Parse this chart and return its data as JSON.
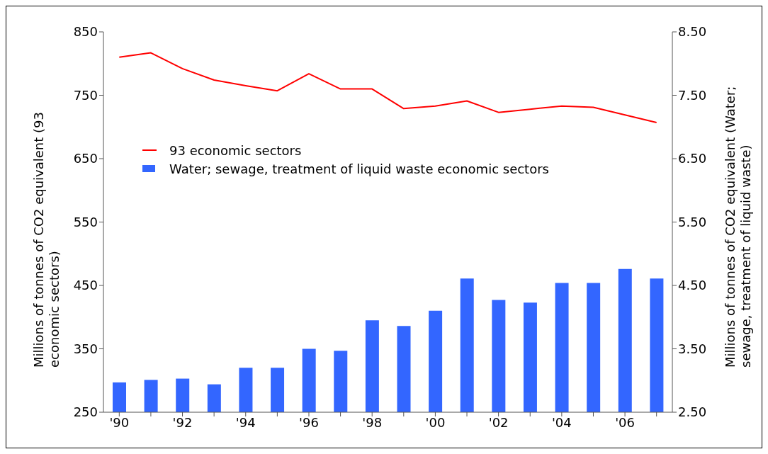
{
  "chart_data": {
    "type": "line",
    "categories": [
      "'90",
      null,
      "'92",
      null,
      "'94",
      null,
      "'96",
      null,
      "'98",
      null,
      "'00",
      null,
      "'02",
      null,
      "'04",
      null,
      "'06",
      null
    ],
    "ylabel": "Millions of tonnes of CO2 equivalent (93 economic sectors)",
    "y2label": "Millions of tonnes of CO2 equivalent (Water; sewage, treatment of liquid waste)",
    "ylim": [
      250,
      850
    ],
    "yticks": [
      250,
      350,
      450,
      550,
      650,
      750,
      850
    ],
    "y2lim": [
      2.5,
      8.5
    ],
    "y2ticks": [
      {
        "value": 2.5,
        "label": "2.50"
      },
      {
        "value": 3.5,
        "label": "3.50"
      },
      {
        "value": 4.5,
        "label": "4.50"
      },
      {
        "value": 5.5,
        "label": "5.50"
      },
      {
        "value": 6.5,
        "label": "6.50"
      },
      {
        "value": 7.5,
        "label": "7.50"
      },
      {
        "value": 8.5,
        "label": "8.50"
      }
    ],
    "legend": "top left",
    "marker": "none",
    "line_style": "solid",
    "series": [
      {
        "name": "93 economic sectors",
        "color": "#ff0000",
        "values": [
          810,
          817,
          792,
          774,
          765,
          757,
          784,
          760,
          760,
          729,
          733,
          741,
          723,
          728,
          733,
          731,
          719,
          707
        ]
      },
      {
        "name": "Water; sewage, treatment of liquid waste economic sectors",
        "type": "bar",
        "axis": "y2",
        "color": "#3366ff",
        "values": [
          2.97,
          3.01,
          3.03,
          2.94,
          3.2,
          3.2,
          3.5,
          3.47,
          3.95,
          3.86,
          4.1,
          4.61,
          4.27,
          4.23,
          4.54,
          4.54,
          4.76,
          4.61
        ]
      }
    ]
  }
}
